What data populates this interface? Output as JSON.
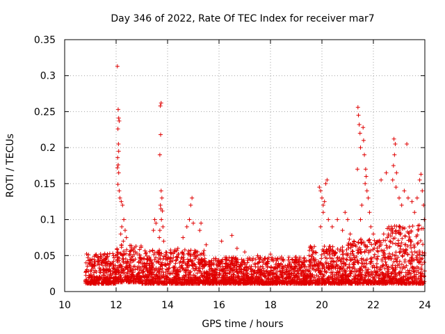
{
  "chart_data": {
    "type": "scatter",
    "title": "Day 346 of 2022, Rate Of TEC Index for receiver mar7",
    "xlabel": "GPS time / hours",
    "ylabel": "ROTI / TECUs",
    "xlim": [
      10,
      24
    ],
    "ylim": [
      0,
      0.35
    ],
    "xticks": [
      10,
      12,
      14,
      16,
      18,
      20,
      22,
      24
    ],
    "yticks": [
      0,
      0.05,
      0.1,
      0.15,
      0.2,
      0.25,
      0.3,
      0.35
    ],
    "xtick_labels": [
      "10",
      "12",
      "14",
      "16",
      "18",
      "20",
      "22",
      "24"
    ],
    "ytick_labels": [
      "0",
      "0.05",
      "0.1",
      "0.15",
      "0.2",
      "0.25",
      "0.3",
      "0.35"
    ],
    "grid": true,
    "marker": "+",
    "marker_color": "#e00000",
    "series": [
      {
        "name": "ROTI",
        "points": [
          [
            12.05,
            0.313
          ],
          [
            12.08,
            0.253
          ],
          [
            12.1,
            0.241
          ],
          [
            12.12,
            0.237
          ],
          [
            12.07,
            0.226
          ],
          [
            12.09,
            0.205
          ],
          [
            12.1,
            0.195
          ],
          [
            12.06,
            0.186
          ],
          [
            12.08,
            0.176
          ],
          [
            12.05,
            0.172
          ],
          [
            12.1,
            0.165
          ],
          [
            12.07,
            0.149
          ],
          [
            12.12,
            0.14
          ],
          [
            12.15,
            0.13
          ],
          [
            12.2,
            0.125
          ],
          [
            12.25,
            0.12
          ],
          [
            12.3,
            0.1
          ],
          [
            12.22,
            0.09
          ],
          [
            12.35,
            0.085
          ],
          [
            12.18,
            0.08
          ],
          [
            12.4,
            0.075
          ],
          [
            12.28,
            0.07
          ],
          [
            13.75,
            0.262
          ],
          [
            13.72,
            0.258
          ],
          [
            13.73,
            0.218
          ],
          [
            13.7,
            0.19
          ],
          [
            13.75,
            0.14
          ],
          [
            13.78,
            0.13
          ],
          [
            13.72,
            0.12
          ],
          [
            13.74,
            0.115
          ],
          [
            13.8,
            0.112
          ],
          [
            13.76,
            0.1
          ],
          [
            13.82,
            0.09
          ],
          [
            13.7,
            0.085
          ],
          [
            13.68,
            0.075
          ],
          [
            13.85,
            0.07
          ],
          [
            13.5,
            0.1
          ],
          [
            13.55,
            0.095
          ],
          [
            13.45,
            0.085
          ],
          [
            14.95,
            0.13
          ],
          [
            14.9,
            0.12
          ],
          [
            14.85,
            0.1
          ],
          [
            15.0,
            0.095
          ],
          [
            14.75,
            0.09
          ],
          [
            15.3,
            0.095
          ],
          [
            15.25,
            0.085
          ],
          [
            14.6,
            0.075
          ],
          [
            14.4,
            0.06
          ],
          [
            15.5,
            0.065
          ],
          [
            16.1,
            0.07
          ],
          [
            16.5,
            0.078
          ],
          [
            16.7,
            0.06
          ],
          [
            17.0,
            0.055
          ],
          [
            17.5,
            0.05
          ],
          [
            18.0,
            0.052
          ],
          [
            18.5,
            0.045
          ],
          [
            19.0,
            0.048
          ],
          [
            19.5,
            0.05
          ],
          [
            19.9,
            0.145
          ],
          [
            19.95,
            0.14
          ],
          [
            20.0,
            0.13
          ],
          [
            20.05,
            0.12
          ],
          [
            20.1,
            0.125
          ],
          [
            20.15,
            0.15
          ],
          [
            20.2,
            0.155
          ],
          [
            20.05,
            0.11
          ],
          [
            19.95,
            0.09
          ],
          [
            20.25,
            0.1
          ],
          [
            20.4,
            0.09
          ],
          [
            20.6,
            0.1
          ],
          [
            20.8,
            0.085
          ],
          [
            20.9,
            0.11
          ],
          [
            21.0,
            0.1
          ],
          [
            21.1,
            0.08
          ],
          [
            21.4,
            0.256
          ],
          [
            21.42,
            0.245
          ],
          [
            21.45,
            0.232
          ],
          [
            21.48,
            0.22
          ],
          [
            21.5,
            0.2
          ],
          [
            21.38,
            0.17
          ],
          [
            21.6,
            0.228
          ],
          [
            21.62,
            0.21
          ],
          [
            21.65,
            0.19
          ],
          [
            21.7,
            0.17
          ],
          [
            21.72,
            0.16
          ],
          [
            21.68,
            0.15
          ],
          [
            21.75,
            0.14
          ],
          [
            21.8,
            0.13
          ],
          [
            21.55,
            0.12
          ],
          [
            21.85,
            0.11
          ],
          [
            21.5,
            0.1
          ],
          [
            21.9,
            0.09
          ],
          [
            22.0,
            0.08
          ],
          [
            22.3,
            0.155
          ],
          [
            22.5,
            0.165
          ],
          [
            22.8,
            0.212
          ],
          [
            22.85,
            0.205
          ],
          [
            22.82,
            0.19
          ],
          [
            22.78,
            0.175
          ],
          [
            22.9,
            0.165
          ],
          [
            22.75,
            0.155
          ],
          [
            22.88,
            0.145
          ],
          [
            23.0,
            0.13
          ],
          [
            23.1,
            0.12
          ],
          [
            23.2,
            0.14
          ],
          [
            23.3,
            0.205
          ],
          [
            23.35,
            0.13
          ],
          [
            23.5,
            0.125
          ],
          [
            23.6,
            0.11
          ],
          [
            23.7,
            0.13
          ],
          [
            23.8,
            0.155
          ],
          [
            23.85,
            0.163
          ],
          [
            23.9,
            0.14
          ],
          [
            23.95,
            0.12
          ],
          [
            23.98,
            0.1
          ],
          [
            23.4,
            0.09
          ],
          [
            23.0,
            0.085
          ],
          [
            22.6,
            0.09
          ],
          [
            22.4,
            0.08
          ]
        ]
      }
    ],
    "dense_bands": [
      {
        "x_from": 10.8,
        "x_to": 12.0,
        "y_min": 0.003,
        "y_max": 0.045
      },
      {
        "x_from": 12.0,
        "x_to": 13.0,
        "y_min": 0.005,
        "y_max": 0.06
      },
      {
        "x_from": 13.0,
        "x_to": 15.5,
        "y_min": 0.003,
        "y_max": 0.05
      },
      {
        "x_from": 15.5,
        "x_to": 19.5,
        "y_min": 0.003,
        "y_max": 0.04
      },
      {
        "x_from": 19.5,
        "x_to": 21.0,
        "y_min": 0.003,
        "y_max": 0.055
      },
      {
        "x_from": 21.0,
        "x_to": 22.5,
        "y_min": 0.003,
        "y_max": 0.065
      },
      {
        "x_from": 22.5,
        "x_to": 24.0,
        "y_min": 0.003,
        "y_max": 0.085
      }
    ]
  }
}
